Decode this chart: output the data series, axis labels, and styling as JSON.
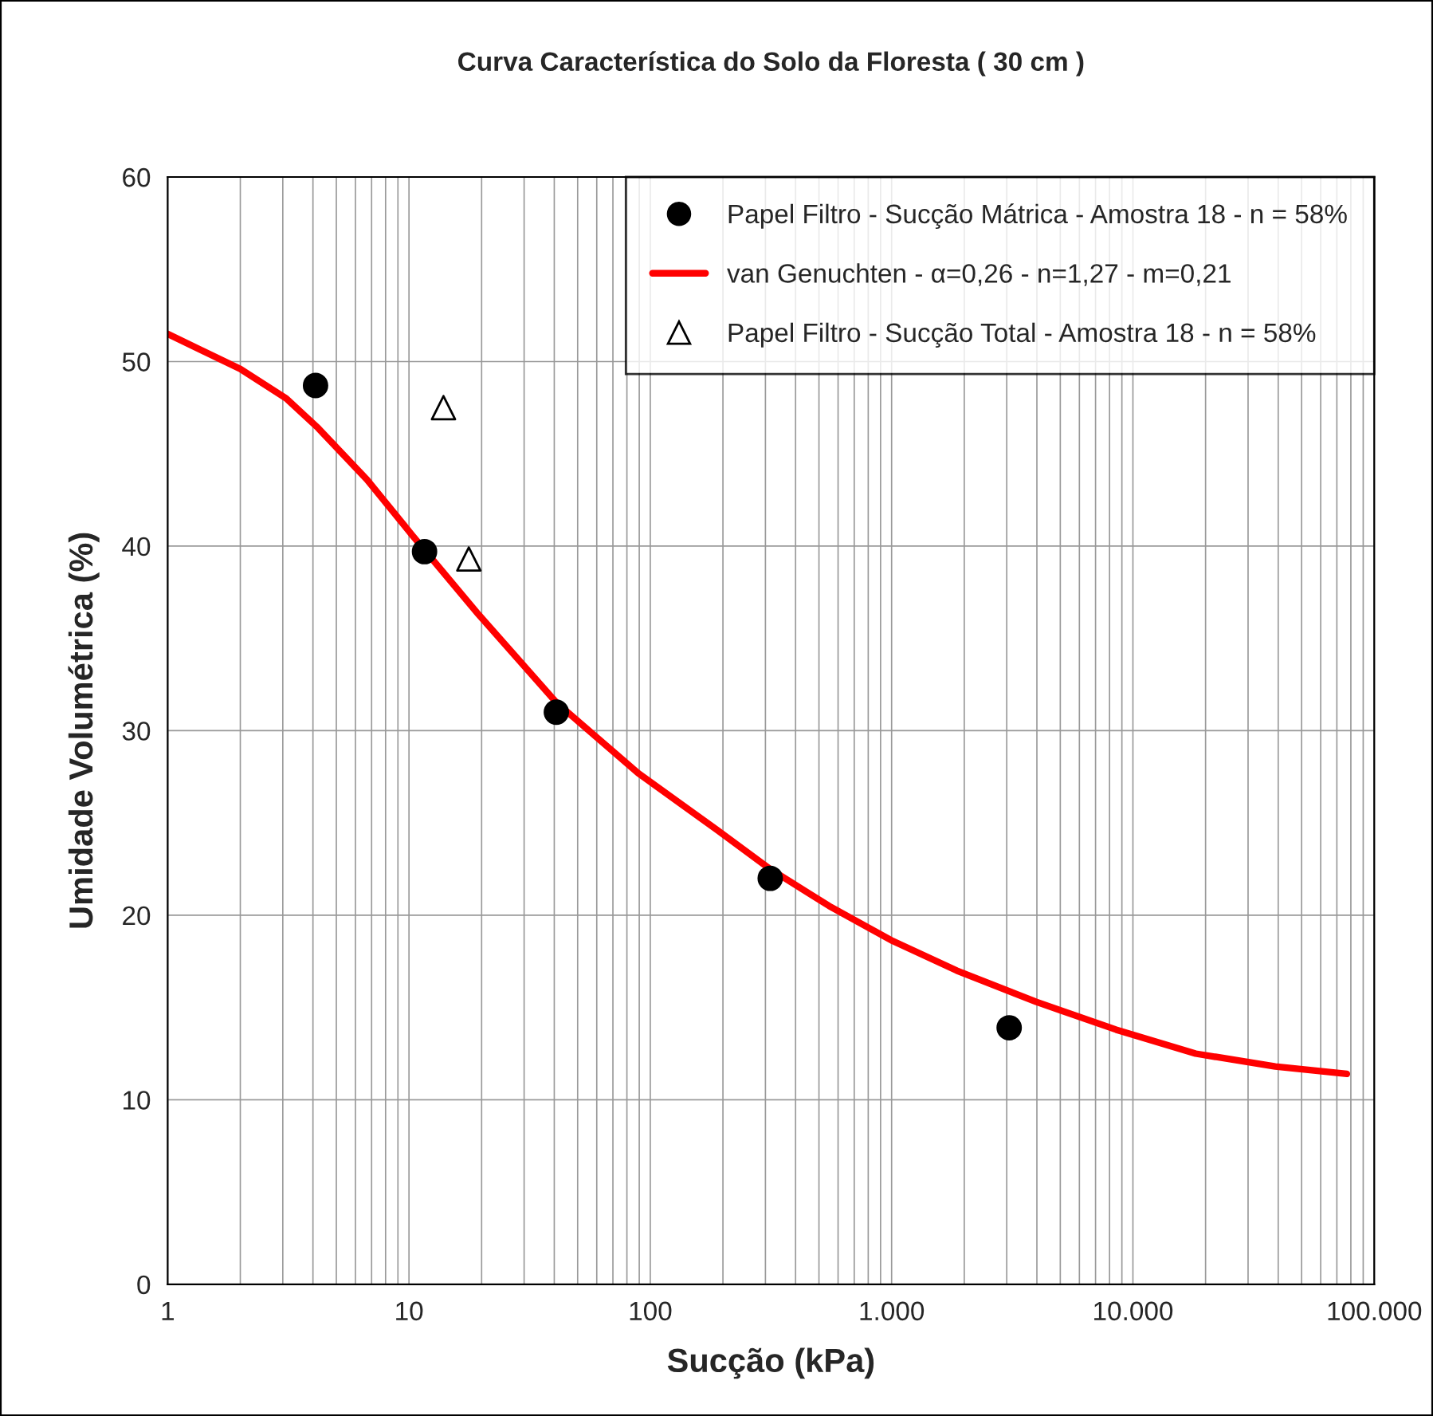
{
  "chart_data": {
    "type": "scatter",
    "title": "Curva Característica do Solo da Floresta ( 30 cm )",
    "xlabel": "Sucção (kPa)",
    "ylabel": "Umidade Volumétrica (%)",
    "log": "x",
    "xlim": [
      1,
      100000
    ],
    "xticks": [
      1,
      10,
      100,
      {
        "value": 1000,
        "label": "1.000"
      },
      {
        "value": 10000,
        "label": "10.000"
      },
      {
        "value": 100000,
        "label": "100.000"
      }
    ],
    "ylim": [
      0,
      60
    ],
    "yticks": [
      0,
      10,
      20,
      30,
      40,
      50,
      60
    ],
    "grid": true,
    "legend": "top right",
    "series": [
      {
        "name": "Papel Filtro - Sucção Mátrica - Amostra 18 - n = 58%",
        "marker": "circle",
        "color": "#000000",
        "x": [
          4.1,
          11.6,
          40.8,
          314,
          3070
        ],
        "values": [
          48.7,
          39.7,
          31.0,
          22.0,
          13.9
        ]
      },
      {
        "name": "van Genuchten - α=0,26 - n=1,27 - m=0,21",
        "type": "line",
        "marker": "none",
        "line_style": "solid",
        "color": "#ff0000",
        "x": [
          1,
          2,
          3.1,
          4.2,
          6.7,
          10.3,
          19.4,
          41,
          89,
          190,
          314,
          551,
          1012,
          1860,
          3980,
          8510,
          18200,
          38900,
          77000
        ],
        "values": [
          51.5,
          49.6,
          48.0,
          46.4,
          43.6,
          40.6,
          36.3,
          31.5,
          27.7,
          24.6,
          22.5,
          20.5,
          18.6,
          17.0,
          15.3,
          13.8,
          12.5,
          11.8,
          11.4
        ]
      },
      {
        "name": "Papel Filtro - Sucção Total - Amostra 18 - n = 58%",
        "marker": "triangle",
        "color": "#000000",
        "x": [
          13.9,
          17.7
        ],
        "values": [
          47.5,
          39.3
        ]
      }
    ]
  }
}
